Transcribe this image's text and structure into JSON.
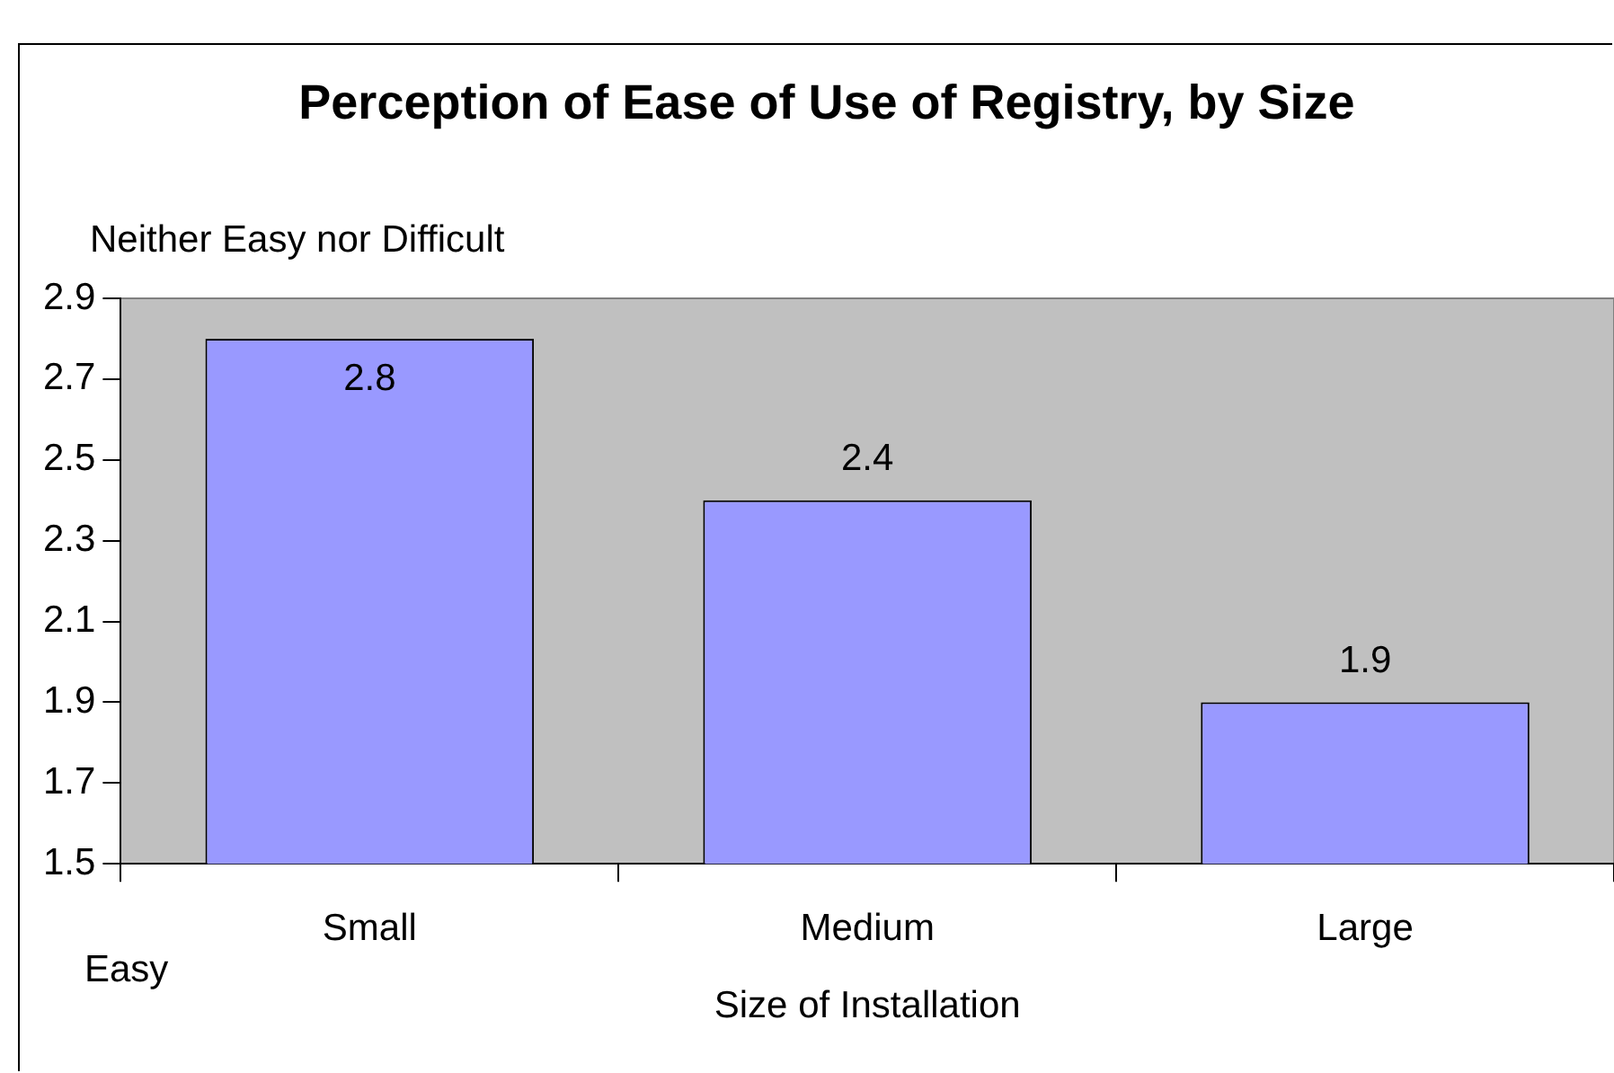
{
  "chart_data": {
    "type": "bar",
    "title": "Perception of Ease of Use of Registry, by Size",
    "xlabel": "Size of Installation",
    "categories": [
      "Small",
      "Medium",
      "Large"
    ],
    "values": [
      2.8,
      2.4,
      1.9
    ],
    "color": "#9999ff",
    "ylim": [
      1.5,
      2.9
    ],
    "yticks": [
      1.5,
      1.7,
      1.9,
      2.1,
      2.3,
      2.5,
      2.7,
      2.9
    ],
    "grid": false,
    "legend": false,
    "data_labels": true,
    "annotations": [
      "Neither Easy nor Difficult",
      "Easy"
    ]
  }
}
